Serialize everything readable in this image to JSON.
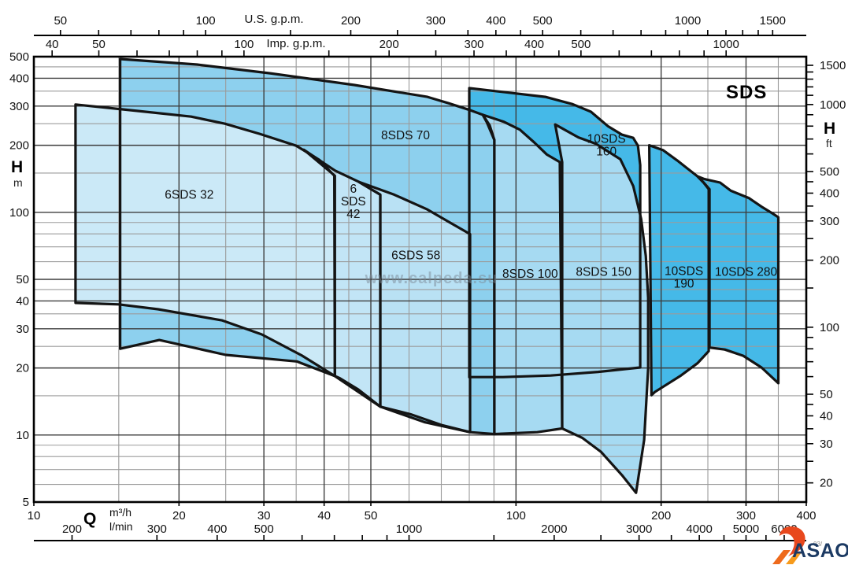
{
  "badge": "SDS",
  "watermark": "www.calpeda.su",
  "axis_titles": {
    "us": "U.S. g.p.m.",
    "imp": "Imp. g.p.m.",
    "q": "Q",
    "m3h": "m³/h",
    "lmin": "l/min",
    "h_left": "H",
    "m_unit": "m",
    "h_right": "H",
    "ft_unit": "ft"
  },
  "logo": {
    "text": "ASAO",
    "code_fragment": "03/"
  },
  "chart_data": {
    "type": "area",
    "title": "SDS",
    "description": "Composite Q-H selection chart (log-log) for SDS borehole pump families; each region is a pump model performance envelope",
    "x_axis": {
      "unit": "m³/h",
      "scale": "log",
      "min": 10,
      "max": 400,
      "labels": [
        10,
        20,
        30,
        40,
        50,
        100,
        200,
        300,
        400
      ],
      "grid_major": [
        20,
        30,
        40,
        50,
        100,
        200,
        300
      ],
      "grid_minor": [
        15,
        25,
        35,
        45,
        60,
        70,
        80,
        90,
        150,
        250,
        350
      ]
    },
    "y_axis": {
      "unit": "m",
      "scale": "log",
      "min": 5,
      "max": 500,
      "labels": [
        500,
        400,
        300,
        200,
        100,
        50,
        40,
        30,
        20,
        10,
        5
      ],
      "grid_major": [
        10,
        20,
        30,
        40,
        50,
        100,
        200,
        300,
        400
      ],
      "grid_minor": [
        6,
        7,
        8,
        9,
        15,
        25,
        35,
        45,
        60,
        70,
        80,
        90,
        150,
        250,
        350,
        450
      ]
    },
    "secondary_x": {
      "us_gpm": {
        "ticks": [
          50,
          60,
          70,
          80,
          90,
          100,
          150,
          200,
          250,
          300,
          350,
          400,
          450,
          500,
          600,
          700,
          800,
          900,
          1000,
          1100,
          1200,
          1300,
          1400,
          1500
        ],
        "labels": [
          50,
          100,
          200,
          300,
          400,
          500,
          1000,
          1500
        ]
      },
      "imp_gpm": {
        "ticks": [
          40,
          50,
          60,
          70,
          80,
          90,
          100,
          150,
          200,
          250,
          300,
          350,
          400,
          450,
          500,
          600,
          700,
          800,
          900,
          1000
        ],
        "labels": [
          40,
          50,
          100,
          200,
          300,
          400,
          500,
          1000
        ]
      },
      "l_min": {
        "ticks": [
          200,
          300,
          400,
          500,
          600,
          700,
          800,
          900,
          1000,
          1500,
          2000,
          2500,
          3000,
          3500,
          4000,
          4500,
          5000,
          5500,
          6000
        ],
        "labels": [
          200,
          300,
          400,
          500,
          1000,
          2000,
          3000,
          4000,
          5000,
          6000
        ]
      }
    },
    "secondary_y": {
      "ft": {
        "ticks": [
          1500,
          1400,
          1300,
          1200,
          1100,
          1000,
          900,
          800,
          700,
          600,
          500,
          450,
          400,
          350,
          300,
          250,
          200,
          150,
          100,
          90,
          80,
          70,
          60,
          50,
          45,
          40,
          35,
          30,
          25,
          20
        ],
        "labels": [
          1500,
          1000,
          500,
          400,
          300,
          200,
          100,
          50,
          40,
          30,
          20
        ]
      }
    },
    "envelopes": [
      {
        "name": "10SDS 160",
        "fill": "#45b9e8",
        "label": {
          "lines": [
            "10SDS",
            "160"
          ],
          "pos": [
            154,
            200
          ]
        },
        "points": [
          [
            80,
            361
          ],
          [
            95,
            346
          ],
          [
            115,
            330
          ],
          [
            131,
            306
          ],
          [
            143,
            283
          ],
          [
            155,
            244
          ],
          [
            166,
            223
          ],
          [
            175,
            216
          ],
          [
            179,
            199
          ],
          [
            181,
            163
          ],
          [
            181,
            20.1
          ],
          [
            148,
            19.2
          ],
          [
            118,
            18.5
          ],
          [
            94,
            18.2
          ],
          [
            80,
            18.2
          ]
        ]
      },
      {
        "name": "10SDS 190",
        "fill": "#45b9e8",
        "label": {
          "lines": [
            "10SDS",
            "190"
          ],
          "pos": [
            223,
            51
          ]
        },
        "points": [
          [
            189,
            200
          ],
          [
            202,
            190
          ],
          [
            216,
            171
          ],
          [
            228,
            156
          ],
          [
            238,
            145
          ],
          [
            245,
            136
          ],
          [
            251,
            127
          ],
          [
            251,
            23.8
          ],
          [
            238,
            21
          ],
          [
            219,
            18.4
          ],
          [
            204,
            16.7
          ],
          [
            194,
            15.6
          ],
          [
            191,
            15.1
          ]
        ]
      },
      {
        "name": "10SDS 280",
        "fill": "#45b9e8",
        "label": {
          "lines": [
            "10SDS 280"
          ],
          "pos": [
            300,
            54
          ]
        },
        "points": [
          [
            238,
            145
          ],
          [
            246,
            141
          ],
          [
            265,
            136
          ],
          [
            279,
            125
          ],
          [
            304,
            116
          ],
          [
            323,
            106
          ],
          [
            340,
            99
          ],
          [
            350,
            95
          ],
          [
            350,
            17.1
          ],
          [
            323,
            20.1
          ],
          [
            296,
            22.7
          ],
          [
            271,
            24.2
          ],
          [
            252,
            24.7
          ],
          [
            252,
            127
          ],
          [
            245,
            136
          ]
        ]
      },
      {
        "name": "8SDS 70",
        "fill": "#8dd0ee",
        "label": {
          "lines": [
            "8SDS 70"
          ],
          "pos": [
            59,
            222
          ]
        },
        "points": [
          [
            15.1,
            488
          ],
          [
            21.8,
            461
          ],
          [
            30.9,
            421
          ],
          [
            46.2,
            373
          ],
          [
            65.5,
            330
          ],
          [
            72.5,
            309
          ],
          [
            80.5,
            287
          ],
          [
            85.3,
            274
          ],
          [
            88.2,
            246
          ],
          [
            90.2,
            211
          ],
          [
            90.2,
            10.1
          ],
          [
            80.3,
            10.3
          ],
          [
            64.8,
            11.4
          ],
          [
            52.3,
            13.4
          ],
          [
            42.1,
            18.4
          ],
          [
            35.1,
            21.4
          ],
          [
            25,
            22.9
          ],
          [
            18.2,
            26.7
          ],
          [
            15.1,
            24.4
          ]
        ]
      },
      {
        "name": "8SDS 150",
        "fill": "#a6daf2",
        "label": {
          "lines": [
            "8SDS 150"
          ],
          "pos": [
            152,
            54
          ]
        },
        "points": [
          [
            120.6,
            248
          ],
          [
            134.7,
            217
          ],
          [
            146.5,
            203
          ],
          [
            164.6,
            173
          ],
          [
            175.1,
            131
          ],
          [
            181.8,
            93.4
          ],
          [
            185.9,
            63.7
          ],
          [
            188,
            41.3
          ],
          [
            188,
            19.9
          ],
          [
            184.4,
            9.5
          ],
          [
            177.4,
            5.5
          ],
          [
            165.9,
            6.6
          ],
          [
            150.1,
            8.4
          ],
          [
            137.4,
            9.7
          ],
          [
            124.7,
            10.7
          ],
          [
            124.7,
            168
          ]
        ]
      },
      {
        "name": "8SDS 100",
        "fill": "#a6daf2",
        "label": {
          "lines": [
            "8SDS 100"
          ],
          "pos": [
            107,
            53
          ]
        },
        "points": [
          [
            85.3,
            274
          ],
          [
            94.4,
            255
          ],
          [
            101.9,
            235
          ],
          [
            109.1,
            206
          ],
          [
            115.8,
            182
          ],
          [
            123.3,
            168
          ],
          [
            124.7,
            10.7
          ],
          [
            110.7,
            10.3
          ],
          [
            90.2,
            10.1
          ],
          [
            90.2,
            211
          ],
          [
            86.9,
            255
          ]
        ]
      },
      {
        "name": "6SDS 58",
        "fill": "#b9e1f4",
        "label": {
          "lines": [
            "6SDS 58"
          ],
          "pos": [
            62,
            64
          ]
        },
        "points": [
          [
            47.2,
            137
          ],
          [
            55.9,
            120
          ],
          [
            65.5,
            103
          ],
          [
            72.5,
            90.6
          ],
          [
            80.3,
            79.8
          ],
          [
            80.3,
            10.3
          ],
          [
            70,
            11.1
          ],
          [
            60.4,
            12.4
          ],
          [
            52.3,
            13.4
          ],
          [
            52.3,
            120
          ]
        ]
      },
      {
        "name": "6 SDS 42",
        "fill": "#c2e5f6",
        "label": {
          "lines": [
            "6",
            "SDS",
            "42"
          ],
          "pos": [
            46,
            112
          ]
        },
        "points": [
          [
            36.3,
            191
          ],
          [
            42.1,
            154
          ],
          [
            47.2,
            137
          ],
          [
            52.3,
            120
          ],
          [
            52.3,
            13.4
          ],
          [
            47.1,
            16
          ],
          [
            43.1,
            18
          ],
          [
            42.1,
            18.4
          ],
          [
            42.1,
            146
          ]
        ]
      },
      {
        "name": "6SDS 32",
        "fill": "#cbe9f7",
        "label": {
          "lines": [
            "6SDS 32"
          ],
          "pos": [
            21,
            120
          ]
        },
        "points": [
          [
            12.2,
            305
          ],
          [
            16.5,
            285
          ],
          [
            21.2,
            269
          ],
          [
            24.9,
            250
          ],
          [
            29.4,
            225
          ],
          [
            35,
            199
          ],
          [
            39.1,
            172
          ],
          [
            42,
            146
          ],
          [
            42.1,
            18.4
          ],
          [
            35.9,
            22.8
          ],
          [
            29.7,
            28.3
          ],
          [
            24.6,
            32.7
          ],
          [
            18.1,
            36.7
          ],
          [
            15,
            38.6
          ],
          [
            12.2,
            39.2
          ]
        ]
      }
    ]
  }
}
